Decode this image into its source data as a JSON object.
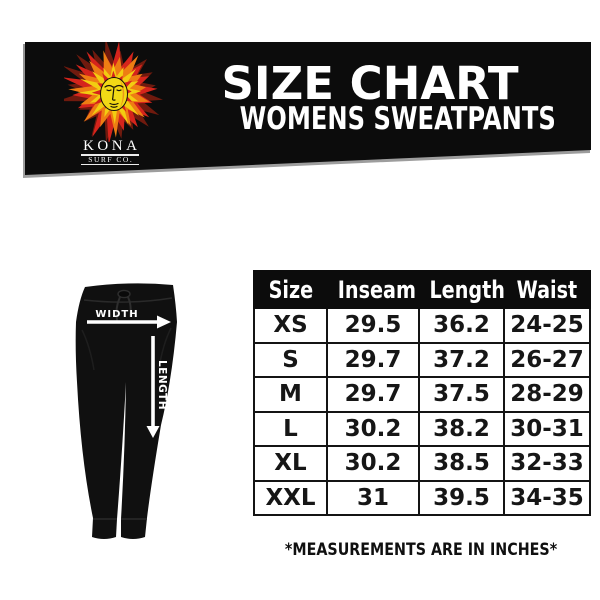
{
  "banner": {
    "title": "SIZE CHART",
    "subtitle": "WOMENS SWEATPANTS",
    "brand": "KONA",
    "brand_sub": "SURF CO."
  },
  "figure": {
    "width_label": "WIDTH",
    "length_label": "LENGTH"
  },
  "table": {
    "headers": [
      "Size",
      "Inseam",
      "Length",
      "Waist"
    ],
    "rows": [
      [
        "XS",
        "29.5",
        "36.2",
        "24-25"
      ],
      [
        "S",
        "29.7",
        "37.2",
        "26-27"
      ],
      [
        "M",
        "29.7",
        "37.5",
        "28-29"
      ],
      [
        "L",
        "30.2",
        "38.2",
        "30-31"
      ],
      [
        "XL",
        "30.2",
        "38.5",
        "32-33"
      ],
      [
        "XXL",
        "31",
        "39.5",
        "34-35"
      ]
    ]
  },
  "footnote": "*MEASUREMENTS ARE IN INCHES*",
  "colors": {
    "banner_bg": "#0c0c0c",
    "flame_dark_red": "#701a0e",
    "flame_red": "#d5241c",
    "flame_orange": "#ee7d13",
    "flame_yellow": "#f2cd11",
    "face_yellow": "#f2d916",
    "text_light": "#ffffff",
    "text_dark": "#141414"
  }
}
